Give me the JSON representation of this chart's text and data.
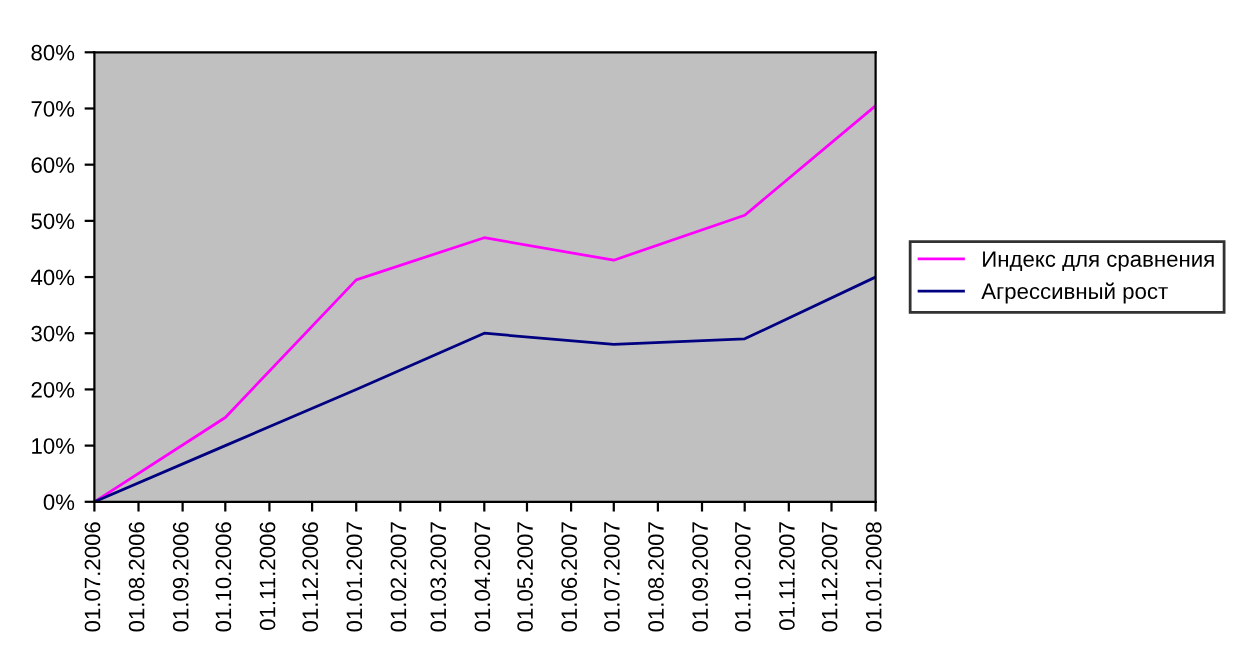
{
  "chart_data": {
    "type": "line",
    "x": [
      "2006-07-01",
      "2006-10-01",
      "2007-01-01",
      "2007-04-01",
      "2007-07-01",
      "2007-10-01",
      "2008-01-01"
    ],
    "series": [
      {
        "name": "Индекс для сравнения",
        "color": "#ff00ff",
        "values": [
          0,
          15,
          39.5,
          47,
          43,
          51,
          70.5
        ]
      },
      {
        "name": "Агрессивный рост",
        "color": "#000080",
        "values": [
          0,
          10,
          20,
          30,
          28,
          29,
          40
        ]
      }
    ],
    "xlim": [
      "2006-07-01",
      "2008-01-01"
    ],
    "xticks": [
      {
        "value": "2006-07-01",
        "label": "01.07.2006"
      },
      {
        "value": "2006-08-01",
        "label": "01.08.2006"
      },
      {
        "value": "2006-09-01",
        "label": "01.09.2006"
      },
      {
        "value": "2006-10-01",
        "label": "01.10.2006"
      },
      {
        "value": "2006-11-01",
        "label": "01.11.2006"
      },
      {
        "value": "2006-12-01",
        "label": "01.12.2006"
      },
      {
        "value": "2007-01-01",
        "label": "01.01.2007"
      },
      {
        "value": "2007-02-01",
        "label": "01.02.2007"
      },
      {
        "value": "2007-03-01",
        "label": "01.03.2007"
      },
      {
        "value": "2007-04-01",
        "label": "01.04.2007"
      },
      {
        "value": "2007-05-01",
        "label": "01.05.2007"
      },
      {
        "value": "2007-06-01",
        "label": "01.06.2007"
      },
      {
        "value": "2007-07-01",
        "label": "01.07.2007"
      },
      {
        "value": "2007-08-01",
        "label": "01.08.2007"
      },
      {
        "value": "2007-09-01",
        "label": "01.09.2007"
      },
      {
        "value": "2007-10-01",
        "label": "01.10.2007"
      },
      {
        "value": "2007-11-01",
        "label": "01.11.2007"
      },
      {
        "value": "2007-12-01",
        "label": "01.12.2007"
      },
      {
        "value": "2008-01-01",
        "label": "01.01.2008"
      }
    ],
    "ylim": [
      0,
      80
    ],
    "yticks": [
      {
        "value": 0,
        "label": "0%"
      },
      {
        "value": 10,
        "label": "10%"
      },
      {
        "value": 20,
        "label": "20%"
      },
      {
        "value": 30,
        "label": "30%"
      },
      {
        "value": 40,
        "label": "40%"
      },
      {
        "value": 50,
        "label": "50%"
      },
      {
        "value": 60,
        "label": "60%"
      },
      {
        "value": 70,
        "label": "70%"
      },
      {
        "value": 80,
        "label": "80%"
      }
    ],
    "grid": false,
    "legend": "right",
    "marker": "none",
    "line_style": "solid"
  }
}
